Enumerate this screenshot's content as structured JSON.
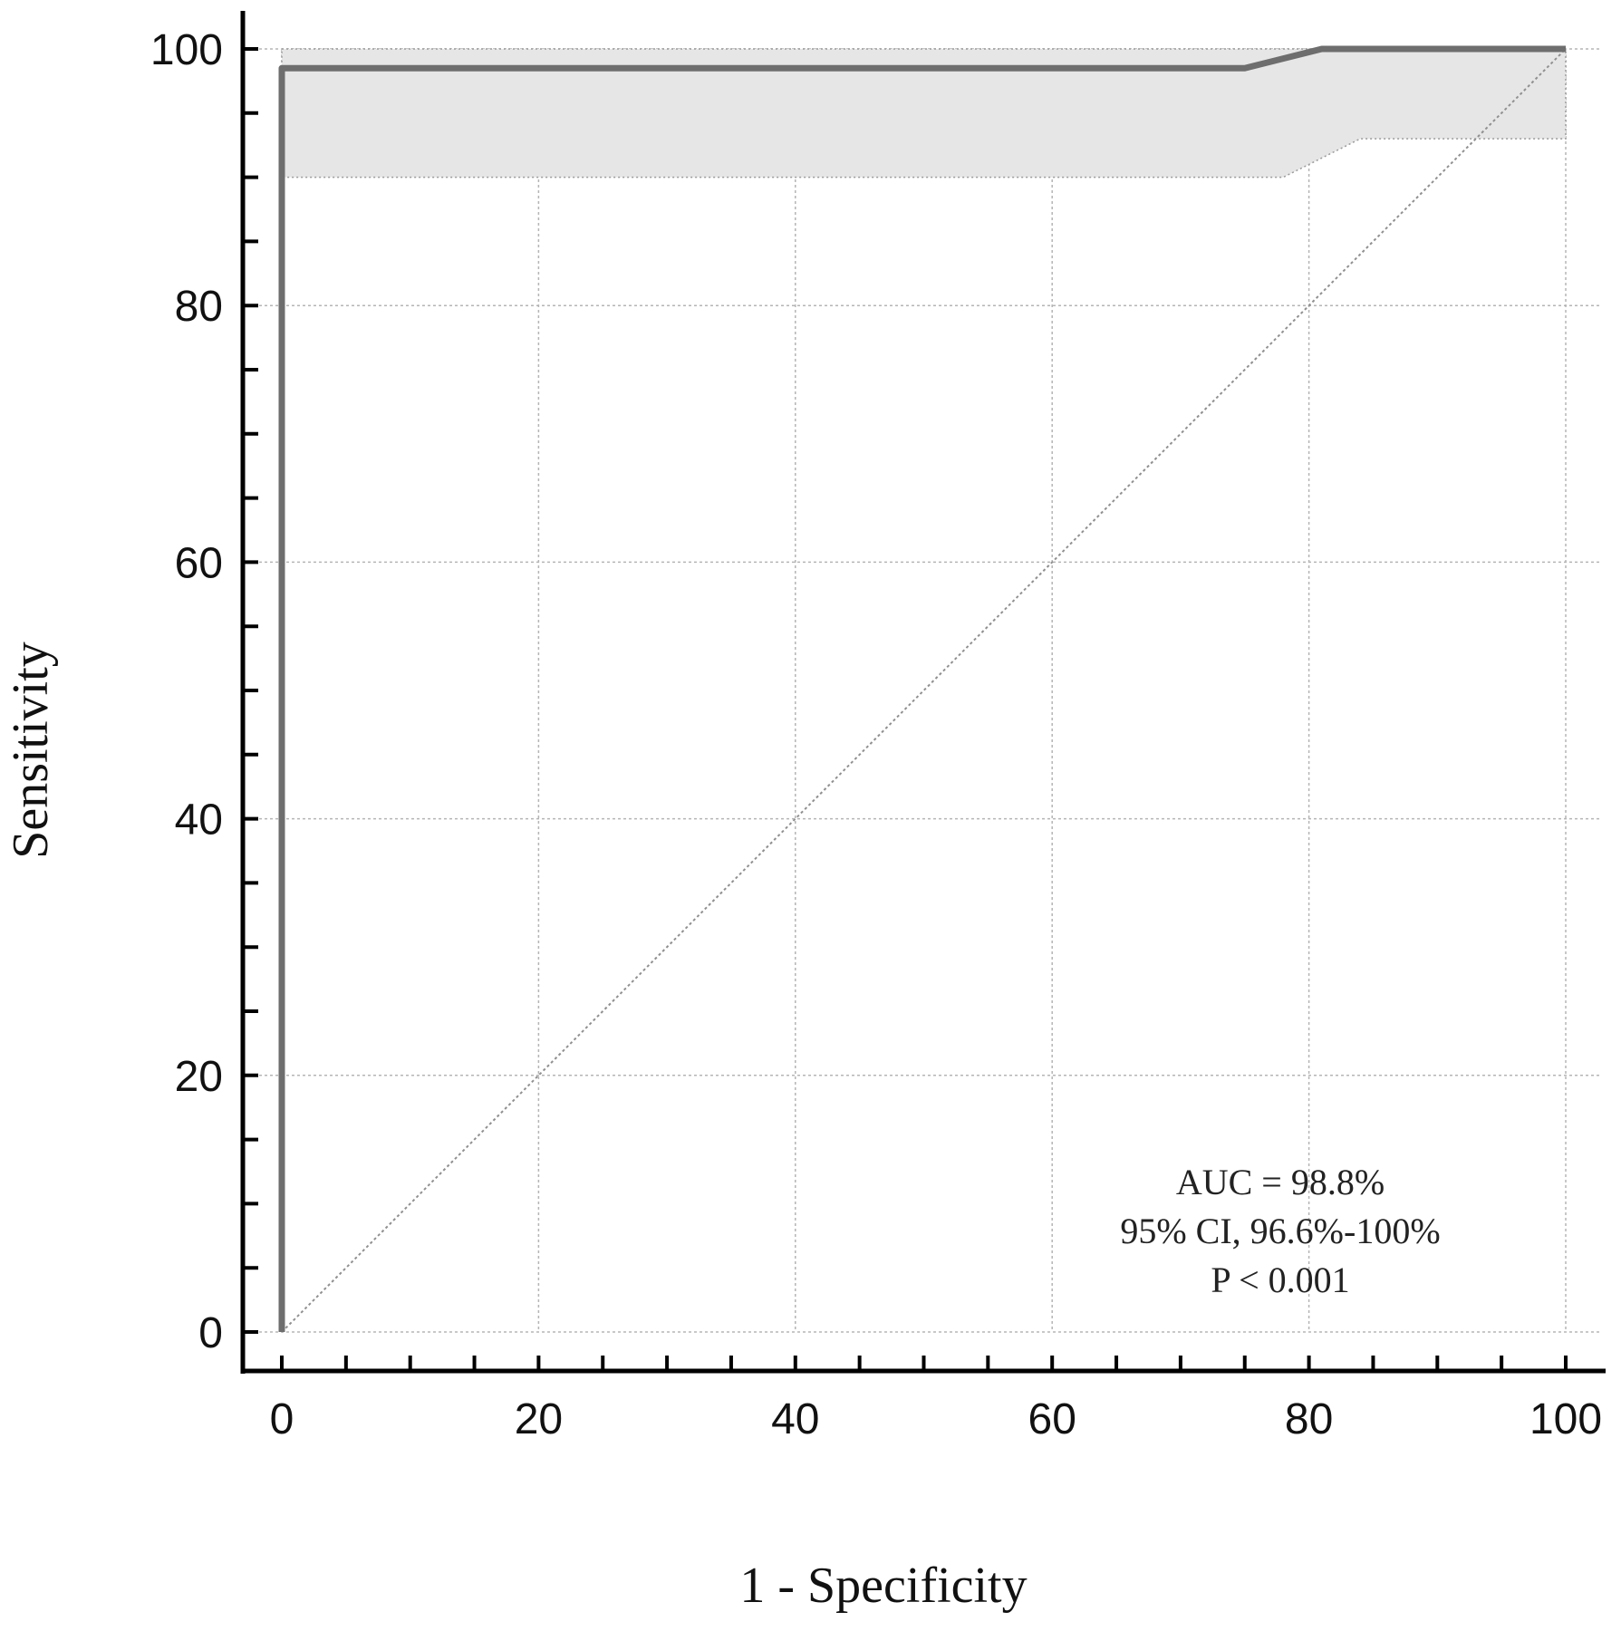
{
  "chart_data": {
    "type": "line",
    "xlabel": "1 - Specificity",
    "ylabel": "Sensitivity",
    "xlim": [
      0,
      100
    ],
    "ylim": [
      0,
      100
    ],
    "x_ticks": [
      0,
      20,
      40,
      60,
      80,
      100
    ],
    "y_ticks": [
      0,
      20,
      40,
      60,
      80,
      100
    ],
    "minor_tick_step": 5,
    "grid": true,
    "series": [
      {
        "role": "roc_curve",
        "color": "#6e6e6e",
        "x": [
          0,
          0,
          75,
          81,
          100
        ],
        "y": [
          0,
          98.5,
          98.5,
          100,
          100
        ]
      },
      {
        "role": "reference_line",
        "color": "#909090",
        "x": [
          0,
          100
        ],
        "y": [
          0,
          100
        ]
      }
    ],
    "confidence_band": {
      "color": "#e6e6e6",
      "x": [
        0,
        78,
        84,
        100
      ],
      "upper": [
        100,
        100,
        100,
        100
      ],
      "lower": [
        90,
        90,
        93,
        93
      ]
    },
    "annotations": [
      "AUC = 98.8%",
      "95% CI, 96.6%-100%",
      "P < 0.001"
    ]
  }
}
